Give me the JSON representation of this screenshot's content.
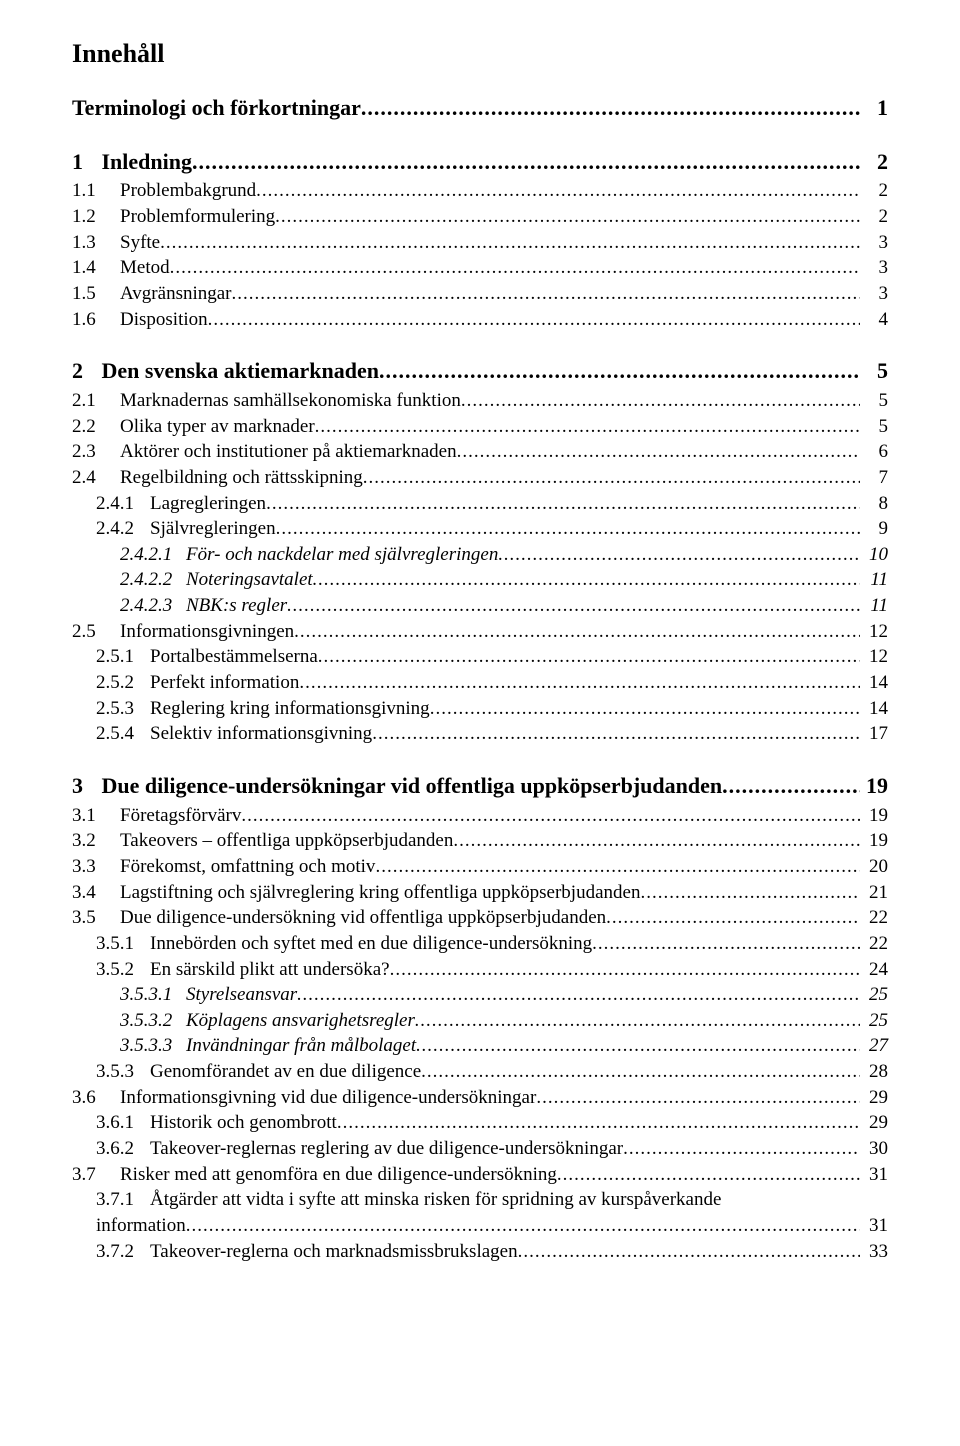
{
  "title": "Innehåll",
  "entries": [
    {
      "cls": "lvl-h1 first",
      "num": "",
      "text": "Terminologi och förkortningar",
      "page": "1"
    },
    {
      "cls": "lvl-h1",
      "num": "1",
      "text": "Inledning",
      "page": "2"
    },
    {
      "cls": "lvl-1",
      "num": "1.1",
      "text": "Problembakgrund",
      "page": "2"
    },
    {
      "cls": "lvl-1",
      "num": "1.2",
      "text": "Problemformulering",
      "page": "2"
    },
    {
      "cls": "lvl-1",
      "num": "1.3",
      "text": "Syfte",
      "page": "3"
    },
    {
      "cls": "lvl-1",
      "num": "1.4",
      "text": "Metod",
      "page": "3"
    },
    {
      "cls": "lvl-1",
      "num": "1.5",
      "text": "Avgränsningar",
      "page": "3"
    },
    {
      "cls": "lvl-1",
      "num": "1.6",
      "text": "Disposition",
      "page": "4"
    },
    {
      "cls": "lvl-h1",
      "num": "2",
      "text": "Den svenska aktiemarknaden",
      "page": "5"
    },
    {
      "cls": "lvl-1",
      "num": "2.1",
      "text": "Marknadernas samhällsekonomiska funktion",
      "page": "5"
    },
    {
      "cls": "lvl-1",
      "num": "2.2",
      "text": "Olika typer av marknader",
      "page": "5"
    },
    {
      "cls": "lvl-1",
      "num": "2.3",
      "text": "Aktörer och institutioner på aktiemarknaden",
      "page": "6"
    },
    {
      "cls": "lvl-1",
      "num": "2.4",
      "text": "Regelbildning och rättsskipning",
      "page": "7"
    },
    {
      "cls": "lvl-2",
      "num": "2.4.1",
      "text": "Lagregleringen",
      "page": "8"
    },
    {
      "cls": "lvl-2",
      "num": "2.4.2",
      "text": "Självregleringen",
      "page": "9"
    },
    {
      "cls": "lvl-3",
      "num": "2.4.2.1",
      "text": "För- och nackdelar med självregleringen",
      "page": "10"
    },
    {
      "cls": "lvl-3",
      "num": "2.4.2.2",
      "text": "Noteringsavtalet",
      "page": "11"
    },
    {
      "cls": "lvl-3",
      "num": "2.4.2.3",
      "text": "NBK:s regler",
      "page": "11"
    },
    {
      "cls": "lvl-1",
      "num": "2.5",
      "text": "Informationsgivningen",
      "page": "12"
    },
    {
      "cls": "lvl-2",
      "num": "2.5.1",
      "text": "Portalbestämmelserna",
      "page": "12"
    },
    {
      "cls": "lvl-2",
      "num": "2.5.2",
      "text": "Perfekt information",
      "page": "14"
    },
    {
      "cls": "lvl-2",
      "num": "2.5.3",
      "text": "Reglering kring informationsgivning",
      "page": "14"
    },
    {
      "cls": "lvl-2",
      "num": "2.5.4",
      "text": "Selektiv informationsgivning",
      "page": "17"
    },
    {
      "cls": "lvl-h1",
      "num": "3",
      "text": "Due diligence-undersökningar vid offentliga uppköpserbjudanden",
      "page": "19"
    },
    {
      "cls": "lvl-1",
      "num": "3.1",
      "text": "Företagsförvärv",
      "page": "19"
    },
    {
      "cls": "lvl-1",
      "num": "3.2",
      "text": "Takeovers – offentliga uppköpserbjudanden",
      "page": "19"
    },
    {
      "cls": "lvl-1",
      "num": "3.3",
      "text": "Förekomst, omfattning och motiv",
      "page": "20"
    },
    {
      "cls": "lvl-1",
      "num": "3.4",
      "text": "Lagstiftning och självreglering kring offentliga uppköpserbjudanden",
      "page": "21"
    },
    {
      "cls": "lvl-1",
      "num": "3.5",
      "text": "Due diligence-undersökning vid offentliga uppköpserbjudanden",
      "page": "22"
    },
    {
      "cls": "lvl-2",
      "num": "3.5.1",
      "text": "Innebörden och syftet med en due diligence-undersökning",
      "page": "22"
    },
    {
      "cls": "lvl-2",
      "num": "3.5.2",
      "text": "En särskild plikt att undersöka?",
      "page": "24"
    },
    {
      "cls": "lvl-3",
      "num": "3.5.3.1",
      "text": "Styrelseansvar",
      "page": "25"
    },
    {
      "cls": "lvl-3",
      "num": "3.5.3.2",
      "text": "Köplagens ansvarighetsregler",
      "page": "25"
    },
    {
      "cls": "lvl-3",
      "num": "3.5.3.3",
      "text": "Invändningar från målbolaget",
      "page": "27"
    },
    {
      "cls": "lvl-2",
      "num": "3.5.3",
      "text": "Genomförandet av en due diligence",
      "page": "28"
    },
    {
      "cls": "lvl-1",
      "num": "3.6",
      "text": "Informationsgivning vid due diligence-undersökningar",
      "page": "29"
    },
    {
      "cls": "lvl-2",
      "num": "3.6.1",
      "text": "Historik och genombrott",
      "page": "29"
    },
    {
      "cls": "lvl-2",
      "num": "3.6.2",
      "text": "Takeover-reglernas reglering av due diligence-undersökningar",
      "page": "30"
    },
    {
      "cls": "lvl-1",
      "num": "3.7",
      "text": "Risker med att genomföra en due diligence-undersökning",
      "page": "31"
    },
    {
      "cls": "lvl-2",
      "num": "3.7.1",
      "text": "Åtgärder att vidta i syfte att minska risken för spridning av kurspåverkande",
      "page": "",
      "noleader": true
    },
    {
      "cls": "lvl-2b",
      "num": "",
      "text": "information",
      "page": "31"
    },
    {
      "cls": "lvl-2",
      "num": "3.7.2",
      "text": "Takeover-reglerna och marknadsmissbrukslagen",
      "page": "33"
    }
  ]
}
